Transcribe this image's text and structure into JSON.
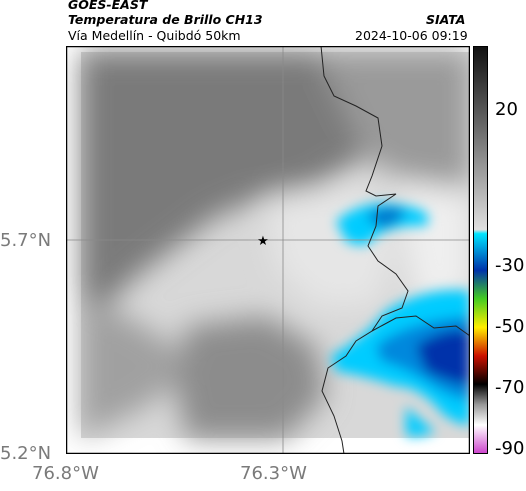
{
  "header": {
    "source": "GOES-EAST",
    "product": "Temperatura de Brillo CH13",
    "region": "Vía Medellín - Quibdó 50km",
    "agency": "SIATA",
    "datetime": "2024-10-06 09:19"
  },
  "map": {
    "lat_ticks": [
      "5.7°N",
      "5.2°N"
    ],
    "lon_ticks": [
      "76.8°W",
      "76.3°W"
    ],
    "marker": "star-marker",
    "background_color": "#ffffff"
  },
  "colorbar": {
    "labels": [
      "20",
      "-30",
      "-50",
      "-70",
      "-90"
    ],
    "colors": {
      "warm_top": "#111111",
      "mid_gray": "#bdbdbd",
      "cyan": "#00e5ff",
      "blue": "#0033aa",
      "green": "#44cc22",
      "yellow": "#ffee00",
      "red": "#cc1100",
      "black": "#000000",
      "magenta": "#cc44cc"
    }
  }
}
